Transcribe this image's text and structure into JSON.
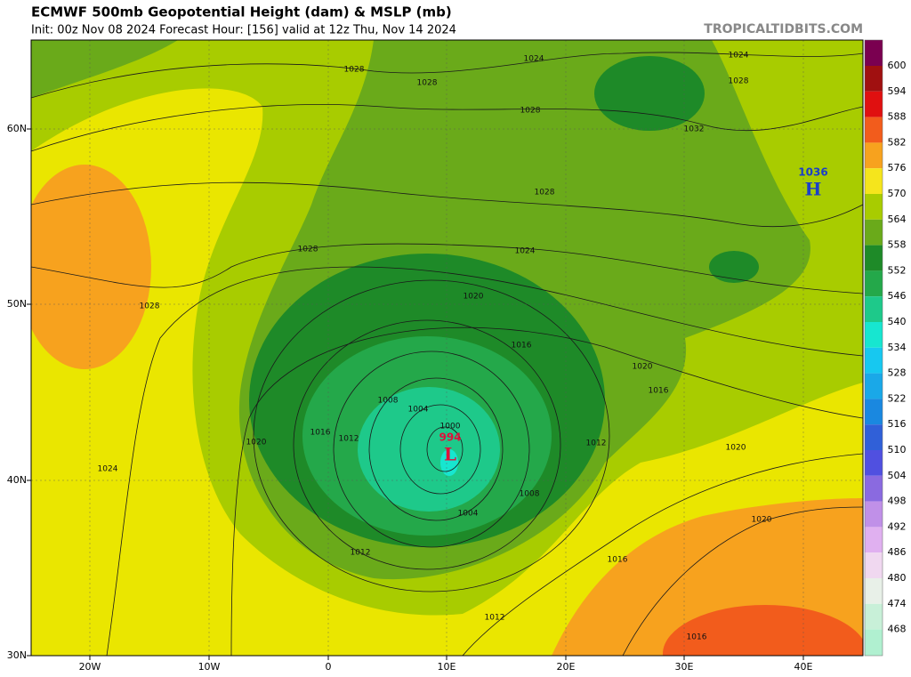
{
  "header": {
    "title": "ECMWF 500mb Geopotential Height (dam) & MSLP (mb)",
    "subtitle": "Init: 00z Nov 08 2024   Forecast Hour: [156]   valid at 12z Thu, Nov 14 2024",
    "source": "TROPICALTIDBITS.COM"
  },
  "latitude_labels": [
    "60N",
    "50N",
    "40N",
    "30N"
  ],
  "longitude_labels": [
    "20W",
    "10W",
    "0",
    "10E",
    "20E",
    "30E",
    "40E"
  ],
  "colorbar": {
    "labels": [
      "600",
      "594",
      "588",
      "582",
      "576",
      "570",
      "564",
      "558",
      "552",
      "546",
      "540",
      "534",
      "528",
      "522",
      "516",
      "510",
      "504",
      "498",
      "492",
      "486",
      "480",
      "474",
      "468"
    ],
    "colors": [
      "#7a0050",
      "#a01010",
      "#e01010",
      "#f25c1c",
      "#f7a21e",
      "#f5e51c",
      "#a8cc00",
      "#6aaa1a",
      "#1e8a28",
      "#24a84a",
      "#1ec98a",
      "#17e6d0",
      "#17c8f0",
      "#1aa8e8",
      "#1a88e0",
      "#3060d8",
      "#5050e0",
      "#8a6ae0",
      "#c090e8",
      "#e0b0f0",
      "#f0d8f0",
      "#e8f0e8",
      "#c8f0d8",
      "#b0f0d0"
    ]
  },
  "isobar_labels": [
    "1028",
    "1024",
    "1024",
    "1028",
    "1028",
    "1028",
    "1032",
    "1028",
    "1028",
    "1024",
    "1028",
    "1020",
    "1016",
    "1020",
    "1016",
    "1008",
    "1004",
    "1000",
    "1016",
    "1012",
    "1020",
    "1024",
    "1012",
    "1020",
    "1008",
    "1004",
    "1020",
    "1012",
    "1016",
    "1012",
    "1016"
  ],
  "pressure_centers": [
    {
      "letter": "H",
      "value": "1036"
    },
    {
      "letter": "L",
      "value": "994"
    }
  ]
}
